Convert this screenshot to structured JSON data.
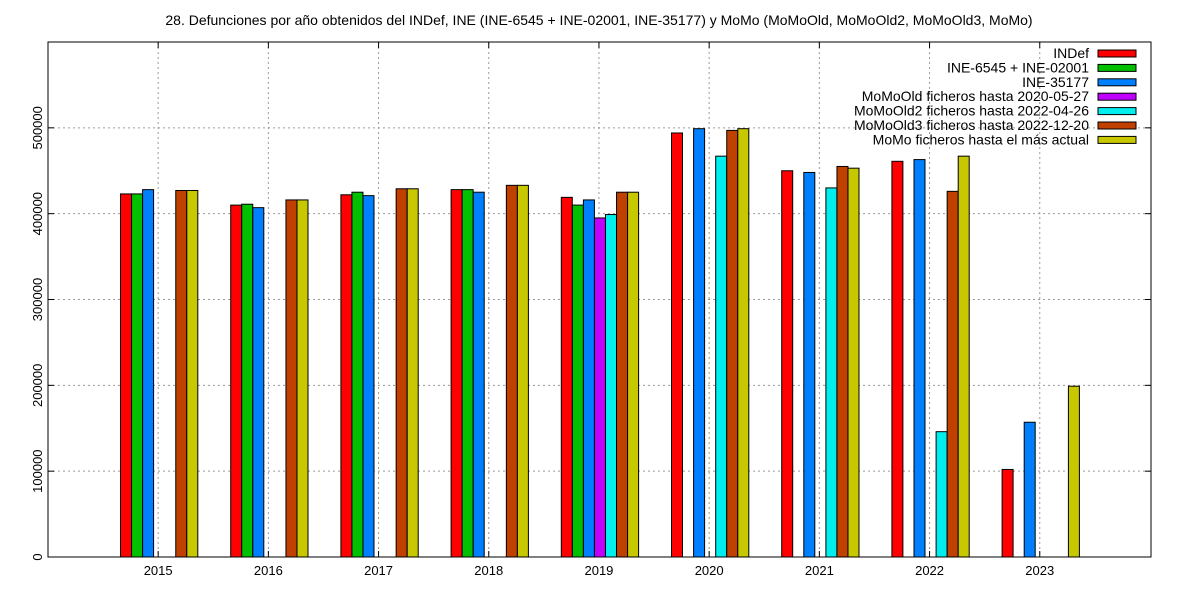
{
  "chart_data": {
    "type": "bar",
    "title": "28. Defunciones por año obtenidos del INDef, INE (INE-6545 + INE-02001, INE-35177) y MoMo (MoMoOld, MoMoOld2, MoMoOld3, MoMo)",
    "xlabel": "",
    "ylabel": "",
    "ylim": [
      0,
      600000
    ],
    "y_ticks": [
      "0",
      "100000",
      "200000",
      "300000",
      "400000",
      "500000"
    ],
    "grid": true,
    "legend_position": "top-right",
    "categories": [
      "2015",
      "2016",
      "2017",
      "2018",
      "2019",
      "2020",
      "2021",
      "2022",
      "2023"
    ],
    "series": [
      {
        "name": "INDef",
        "color": "#ff0000",
        "values": [
          423000,
          410000,
          422000,
          428000,
          419000,
          494000,
          450000,
          461000,
          102000
        ]
      },
      {
        "name": "INE-6545 + INE-02001",
        "color": "#00c000",
        "values": [
          423000,
          411000,
          425000,
          428000,
          410000,
          null,
          null,
          null,
          null
        ]
      },
      {
        "name": "INE-35177",
        "color": "#0080ff",
        "values": [
          428000,
          407000,
          421000,
          425000,
          416000,
          499000,
          448000,
          463000,
          157000
        ]
      },
      {
        "name": "MoMoOld ficheros hasta 2020-05-27",
        "color": "#c000ff",
        "values": [
          null,
          null,
          null,
          null,
          395000,
          null,
          null,
          null,
          null
        ]
      },
      {
        "name": "MoMoOld2 ficheros hasta 2022-04-26",
        "color": "#00eeee",
        "values": [
          null,
          null,
          null,
          null,
          399000,
          467000,
          430000,
          146000,
          null
        ]
      },
      {
        "name": "MoMoOld3 ficheros hasta 2022-12-20",
        "color": "#c04000",
        "values": [
          427000,
          416000,
          429000,
          433000,
          425000,
          497000,
          455000,
          426000,
          null
        ]
      },
      {
        "name": "MoMo ficheros hasta el más actual",
        "color": "#c8c800",
        "values": [
          427000,
          416000,
          429000,
          433000,
          425000,
          499000,
          453000,
          467000,
          199000
        ]
      }
    ]
  }
}
